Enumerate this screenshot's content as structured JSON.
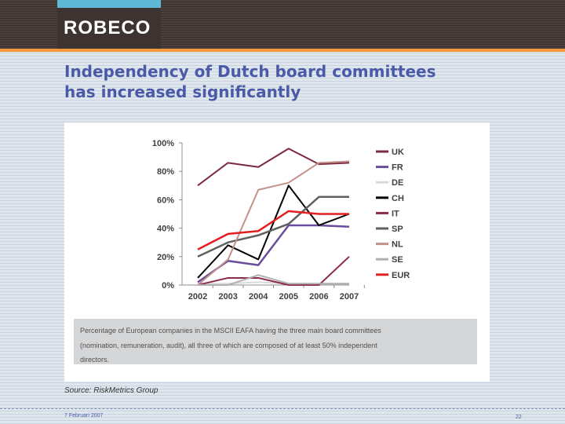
{
  "header": {
    "logo": "ROBECO"
  },
  "title": {
    "line1": "Independency of Dutch board committees",
    "line2": "has increased significantly"
  },
  "chart_data": {
    "type": "line",
    "x": [
      2002,
      2003,
      2004,
      2005,
      2006,
      2007
    ],
    "ylim": [
      0,
      100
    ],
    "yticks": [
      "0%",
      "20%",
      "40%",
      "60%",
      "80%",
      "100%"
    ],
    "xticks": [
      "2002",
      "2003",
      "2004",
      "2005",
      "2006",
      "2007"
    ],
    "grid": false,
    "legend": "right",
    "series": [
      {
        "name": "UK",
        "color": "#7b2a3f",
        "width": 2,
        "values": [
          70,
          86,
          83,
          96,
          85,
          86
        ]
      },
      {
        "name": "FR",
        "color": "#6a4c9c",
        "width": 2.5,
        "values": [
          2,
          17,
          14,
          42,
          42,
          41
        ]
      },
      {
        "name": "DE",
        "color": "#d9d9d9",
        "width": 2,
        "values": [
          1,
          1,
          2,
          1,
          1,
          1
        ]
      },
      {
        "name": "CH",
        "color": "#000000",
        "width": 2,
        "values": [
          5,
          28,
          18,
          70,
          42,
          50
        ]
      },
      {
        "name": "IT",
        "color": "#8b2a4a",
        "width": 2,
        "values": [
          0,
          5,
          5,
          0,
          0,
          20
        ]
      },
      {
        "name": "SP",
        "color": "#606060",
        "width": 2.5,
        "values": [
          20,
          30,
          35,
          43,
          62,
          62
        ]
      },
      {
        "name": "NL",
        "color": "#c4918a",
        "width": 2,
        "values": [
          0,
          18,
          67,
          72,
          86,
          87
        ]
      },
      {
        "name": "SE",
        "color": "#b0b0b0",
        "width": 2,
        "values": [
          0,
          0,
          7,
          1,
          1,
          1
        ]
      },
      {
        "name": "EUR",
        "color": "#e41e1e",
        "width": 2.5,
        "values": [
          25,
          36,
          38,
          52,
          50,
          50
        ]
      }
    ]
  },
  "caption": {
    "line1": "Percentage of European companies in the MSCII EAFA having the three main board committees",
    "line2": "(nomination, remuneration, audit), all three of which are composed of at least 50% independent",
    "line3": "directors."
  },
  "source": "Source: RiskMetrics Group",
  "footer": {
    "date": "7 Februari 2007",
    "page": "22"
  }
}
